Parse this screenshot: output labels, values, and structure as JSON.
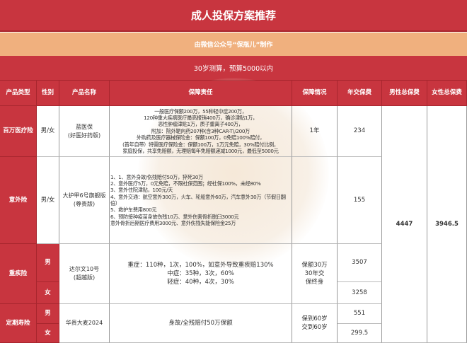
{
  "title": "成人投保方案推荐",
  "credit": "由微信公众号“保瓶儿”制作",
  "budget": "30岁测算，预算5000以内",
  "headers": [
    "产品类型",
    "性别",
    "产品名称",
    "保障责任",
    "保障情况",
    "年交保费",
    "男性总保费",
    "女性总保费"
  ],
  "rows": [
    {
      "type": "百万医疗险",
      "gender": "男/女",
      "name": [
        "蓝医保",
        "(好医好药版)"
      ],
      "duty": [
        "一般医疗保额200万，55种轻中症200万，",
        "120种重大疾病医疗最高报销400万，确诊津贴1万，",
        "恶性肿瘤津贴1万，质子重离子400万，",
        "附加：院外靶向药207种(含3种CAR-T)/200万",
        "外购药及医疗器械保险金：保额100万，0免赔100%赔付，",
        "(首年自带）特需医疗保险金：保额100万，1万元免赔，30%赔付比例，",
        "家庭投保，共享免赔额，无理赔每年免赔额递减1000元，最低至5000元"
      ],
      "coverage": [
        "1年"
      ],
      "fee": "234"
    },
    {
      "type": "意外险",
      "gender": "男/女",
      "name": [
        "大护甲6号旗舰版",
        "(尊贵版)"
      ],
      "duty": [
        "1、1、意外身故/伤残赔付50万，猝死30万",
        "2、意外医疗5万，0元免赔，不限社保范围；经社保100%，未经80%",
        "3、意外住院津贴，100元/天",
        "4、意外交通：航空意外300万，火车、轮船意外60万，汽车意外30万（节假日翻倍）",
        "5、救护车费用800元",
        "6、预防接种疫苗身故伤残10万、意外伤害骨折脱臼3000元",
        "意外骨折后期医疗费用3000元、意外伤残失能保险金25万"
      ],
      "coverage": [],
      "fee": "155"
    },
    {
      "type": "重疾险",
      "genders": [
        "男",
        "女"
      ],
      "name": [
        "达尔文10号",
        "(超越版)"
      ],
      "duty": [
        "重症：110种，1次，100%，如意外导致重疾赔130%",
        "中症：35种，3次，60%",
        "轻症：40种，4次，30%"
      ],
      "coverage": [
        "保额30万",
        "30年交",
        "保终身"
      ],
      "fees": [
        "3507",
        "3258"
      ]
    },
    {
      "type": "定期寿险",
      "genders": [
        "男",
        "女"
      ],
      "name": [
        "华贵大麦2024"
      ],
      "duty": [
        "身故/全残赔付50万保额"
      ],
      "coverage": [
        "保到60岁",
        "交到60岁"
      ],
      "fees": [
        "551",
        "299.5"
      ]
    }
  ],
  "male_total": "4447",
  "female_total": "3946.5",
  "colors": {
    "header_red": "#c8353f",
    "credit_orange": "#f0b07e"
  }
}
